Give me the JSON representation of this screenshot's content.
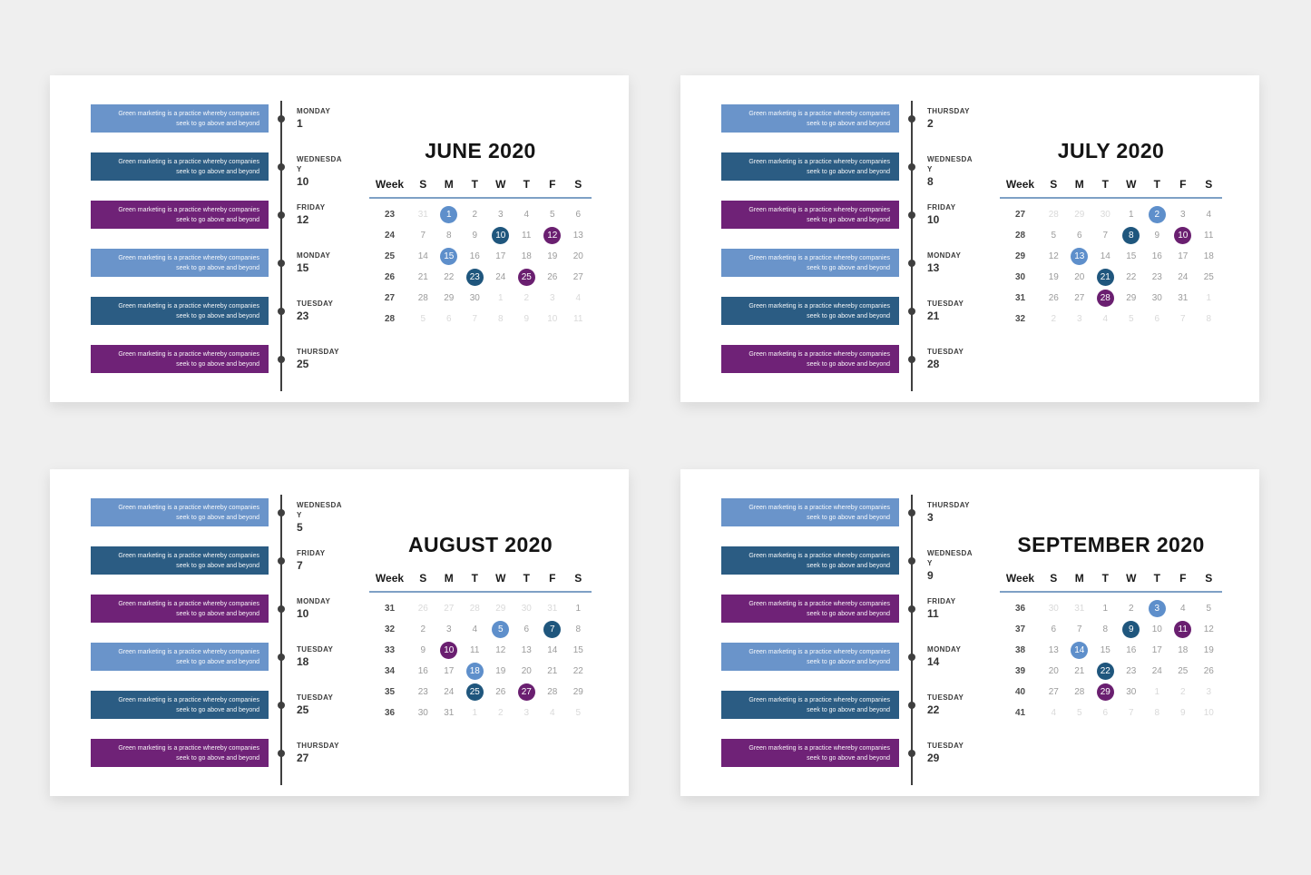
{
  "labels": {
    "week": "Week",
    "days": [
      "S",
      "M",
      "T",
      "W",
      "T",
      "F",
      "S"
    ]
  },
  "event_text": {
    "line1": "Green marketing is a practice whereby companies",
    "line2": "seek to go above and beyond"
  },
  "colors": {
    "light_blue": "#5E8FCB",
    "dark_blue": "#1F567D",
    "purple": "#6A1F70",
    "box_light_blue": "#6A94CA",
    "box_dark_blue": "#2B5C83",
    "box_purple": "#6F2277",
    "timeline": "#3F3F3F",
    "header_line": "#7EA0C5",
    "date": "#9B9B9B",
    "date_faded": "#D9D9D9",
    "week_number": "#4C4C4C",
    "title": "#141414",
    "page_bg": "#EFEFEF",
    "card_bg": "#FFFFFF"
  },
  "months": [
    {
      "title": "JUNE 2020",
      "events": [
        {
          "day": "MONDAY",
          "date": "1",
          "color": "light_blue"
        },
        {
          "day": "WEDNESDAY",
          "date": "10",
          "color": "dark_blue"
        },
        {
          "day": "FRIDAY",
          "date": "12",
          "color": "purple"
        },
        {
          "day": "MONDAY",
          "date": "15",
          "color": "light_blue"
        },
        {
          "day": "TUESDAY",
          "date": "23",
          "color": "dark_blue"
        },
        {
          "day": "THURSDAY",
          "date": "25",
          "color": "purple"
        }
      ],
      "weeks": [
        {
          "num": "23",
          "days": [
            {
              "d": "31",
              "s": "faded"
            },
            {
              "d": "1",
              "s": "light_blue"
            },
            {
              "d": "2"
            },
            {
              "d": "3"
            },
            {
              "d": "4"
            },
            {
              "d": "5"
            },
            {
              "d": "6"
            }
          ]
        },
        {
          "num": "24",
          "days": [
            {
              "d": "7"
            },
            {
              "d": "8"
            },
            {
              "d": "9"
            },
            {
              "d": "10",
              "s": "dark_blue"
            },
            {
              "d": "11"
            },
            {
              "d": "12",
              "s": "purple"
            },
            {
              "d": "13"
            }
          ]
        },
        {
          "num": "25",
          "days": [
            {
              "d": "14"
            },
            {
              "d": "15",
              "s": "light_blue"
            },
            {
              "d": "16"
            },
            {
              "d": "17"
            },
            {
              "d": "18"
            },
            {
              "d": "19"
            },
            {
              "d": "20"
            }
          ]
        },
        {
          "num": "26",
          "days": [
            {
              "d": "21"
            },
            {
              "d": "22"
            },
            {
              "d": "23",
              "s": "dark_blue"
            },
            {
              "d": "24"
            },
            {
              "d": "25",
              "s": "purple"
            },
            {
              "d": "26"
            },
            {
              "d": "27"
            }
          ]
        },
        {
          "num": "27",
          "days": [
            {
              "d": "28"
            },
            {
              "d": "29"
            },
            {
              "d": "30"
            },
            {
              "d": "1",
              "s": "faded"
            },
            {
              "d": "2",
              "s": "faded"
            },
            {
              "d": "3",
              "s": "faded"
            },
            {
              "d": "4",
              "s": "faded"
            }
          ]
        },
        {
          "num": "28",
          "days": [
            {
              "d": "5",
              "s": "faded"
            },
            {
              "d": "6",
              "s": "faded"
            },
            {
              "d": "7",
              "s": "faded"
            },
            {
              "d": "8",
              "s": "faded"
            },
            {
              "d": "9",
              "s": "faded"
            },
            {
              "d": "10",
              "s": "faded"
            },
            {
              "d": "11",
              "s": "faded"
            }
          ]
        }
      ]
    },
    {
      "title": "JULY 2020",
      "events": [
        {
          "day": "THURSDAY",
          "date": "2",
          "color": "light_blue"
        },
        {
          "day": "WEDNESDAY",
          "date": "8",
          "color": "dark_blue"
        },
        {
          "day": "FRIDAY",
          "date": "10",
          "color": "purple"
        },
        {
          "day": "MONDAY",
          "date": "13",
          "color": "light_blue"
        },
        {
          "day": "TUESDAY",
          "date": "21",
          "color": "dark_blue"
        },
        {
          "day": "TUESDAY",
          "date": "28",
          "color": "purple"
        }
      ],
      "weeks": [
        {
          "num": "27",
          "days": [
            {
              "d": "28",
              "s": "faded"
            },
            {
              "d": "29",
              "s": "faded"
            },
            {
              "d": "30",
              "s": "faded"
            },
            {
              "d": "1"
            },
            {
              "d": "2",
              "s": "light_blue"
            },
            {
              "d": "3"
            },
            {
              "d": "4"
            }
          ]
        },
        {
          "num": "28",
          "days": [
            {
              "d": "5"
            },
            {
              "d": "6"
            },
            {
              "d": "7"
            },
            {
              "d": "8",
              "s": "dark_blue"
            },
            {
              "d": "9"
            },
            {
              "d": "10",
              "s": "purple"
            },
            {
              "d": "11"
            }
          ]
        },
        {
          "num": "29",
          "days": [
            {
              "d": "12"
            },
            {
              "d": "13",
              "s": "light_blue"
            },
            {
              "d": "14"
            },
            {
              "d": "15"
            },
            {
              "d": "16"
            },
            {
              "d": "17"
            },
            {
              "d": "18"
            }
          ]
        },
        {
          "num": "30",
          "days": [
            {
              "d": "19"
            },
            {
              "d": "20"
            },
            {
              "d": "21",
              "s": "dark_blue"
            },
            {
              "d": "22"
            },
            {
              "d": "23"
            },
            {
              "d": "24"
            },
            {
              "d": "25"
            }
          ]
        },
        {
          "num": "31",
          "days": [
            {
              "d": "26"
            },
            {
              "d": "27"
            },
            {
              "d": "28",
              "s": "purple"
            },
            {
              "d": "29"
            },
            {
              "d": "30"
            },
            {
              "d": "31"
            },
            {
              "d": "1",
              "s": "faded"
            }
          ]
        },
        {
          "num": "32",
          "days": [
            {
              "d": "2",
              "s": "faded"
            },
            {
              "d": "3",
              "s": "faded"
            },
            {
              "d": "4",
              "s": "faded"
            },
            {
              "d": "5",
              "s": "faded"
            },
            {
              "d": "6",
              "s": "faded"
            },
            {
              "d": "7",
              "s": "faded"
            },
            {
              "d": "8",
              "s": "faded"
            }
          ]
        }
      ]
    },
    {
      "title": "AUGUST 2020",
      "events": [
        {
          "day": "WEDNESDAY",
          "date": "5",
          "color": "light_blue"
        },
        {
          "day": "FRIDAY",
          "date": "7",
          "color": "dark_blue"
        },
        {
          "day": "MONDAY",
          "date": "10",
          "color": "purple"
        },
        {
          "day": "TUESDAY",
          "date": "18",
          "color": "light_blue"
        },
        {
          "day": "TUESDAY",
          "date": "25",
          "color": "dark_blue"
        },
        {
          "day": "THURSDAY",
          "date": "27",
          "color": "purple"
        }
      ],
      "weeks": [
        {
          "num": "31",
          "days": [
            {
              "d": "26",
              "s": "faded"
            },
            {
              "d": "27",
              "s": "faded"
            },
            {
              "d": "28",
              "s": "faded"
            },
            {
              "d": "29",
              "s": "faded"
            },
            {
              "d": "30",
              "s": "faded"
            },
            {
              "d": "31",
              "s": "faded"
            },
            {
              "d": "1"
            }
          ]
        },
        {
          "num": "32",
          "days": [
            {
              "d": "2"
            },
            {
              "d": "3"
            },
            {
              "d": "4"
            },
            {
              "d": "5",
              "s": "light_blue"
            },
            {
              "d": "6"
            },
            {
              "d": "7",
              "s": "dark_blue"
            },
            {
              "d": "8"
            }
          ]
        },
        {
          "num": "33",
          "days": [
            {
              "d": "9"
            },
            {
              "d": "10",
              "s": "purple"
            },
            {
              "d": "11"
            },
            {
              "d": "12"
            },
            {
              "d": "13"
            },
            {
              "d": "14"
            },
            {
              "d": "15"
            }
          ]
        },
        {
          "num": "34",
          "days": [
            {
              "d": "16"
            },
            {
              "d": "17"
            },
            {
              "d": "18",
              "s": "light_blue"
            },
            {
              "d": "19"
            },
            {
              "d": "20"
            },
            {
              "d": "21"
            },
            {
              "d": "22"
            }
          ]
        },
        {
          "num": "35",
          "days": [
            {
              "d": "23"
            },
            {
              "d": "24"
            },
            {
              "d": "25",
              "s": "dark_blue"
            },
            {
              "d": "26"
            },
            {
              "d": "27",
              "s": "purple"
            },
            {
              "d": "28"
            },
            {
              "d": "29"
            }
          ]
        },
        {
          "num": "36",
          "days": [
            {
              "d": "30"
            },
            {
              "d": "31"
            },
            {
              "d": "1",
              "s": "faded"
            },
            {
              "d": "2",
              "s": "faded"
            },
            {
              "d": "3",
              "s": "faded"
            },
            {
              "d": "4",
              "s": "faded"
            },
            {
              "d": "5",
              "s": "faded"
            }
          ]
        }
      ]
    },
    {
      "title": "SEPTEMBER 2020",
      "events": [
        {
          "day": "THURSDAY",
          "date": "3",
          "color": "light_blue"
        },
        {
          "day": "WEDNESDAY",
          "date": "9",
          "color": "dark_blue"
        },
        {
          "day": "FRIDAY",
          "date": "11",
          "color": "purple"
        },
        {
          "day": "MONDAY",
          "date": "14",
          "color": "light_blue"
        },
        {
          "day": "TUESDAY",
          "date": "22",
          "color": "dark_blue"
        },
        {
          "day": "TUESDAY",
          "date": "29",
          "color": "purple"
        }
      ],
      "weeks": [
        {
          "num": "36",
          "days": [
            {
              "d": "30",
              "s": "faded"
            },
            {
              "d": "31",
              "s": "faded"
            },
            {
              "d": "1"
            },
            {
              "d": "2"
            },
            {
              "d": "3",
              "s": "light_blue"
            },
            {
              "d": "4"
            },
            {
              "d": "5"
            }
          ]
        },
        {
          "num": "37",
          "days": [
            {
              "d": "6"
            },
            {
              "d": "7"
            },
            {
              "d": "8"
            },
            {
              "d": "9",
              "s": "dark_blue"
            },
            {
              "d": "10"
            },
            {
              "d": "11",
              "s": "purple"
            },
            {
              "d": "12"
            }
          ]
        },
        {
          "num": "38",
          "days": [
            {
              "d": "13"
            },
            {
              "d": "14",
              "s": "light_blue"
            },
            {
              "d": "15"
            },
            {
              "d": "16"
            },
            {
              "d": "17"
            },
            {
              "d": "18"
            },
            {
              "d": "19"
            }
          ]
        },
        {
          "num": "39",
          "days": [
            {
              "d": "20"
            },
            {
              "d": "21"
            },
            {
              "d": "22",
              "s": "dark_blue"
            },
            {
              "d": "23"
            },
            {
              "d": "24"
            },
            {
              "d": "25"
            },
            {
              "d": "26"
            }
          ]
        },
        {
          "num": "40",
          "days": [
            {
              "d": "27"
            },
            {
              "d": "28"
            },
            {
              "d": "29",
              "s": "purple"
            },
            {
              "d": "30"
            },
            {
              "d": "1",
              "s": "faded"
            },
            {
              "d": "2",
              "s": "faded"
            },
            {
              "d": "3",
              "s": "faded"
            }
          ]
        },
        {
          "num": "41",
          "days": [
            {
              "d": "4",
              "s": "faded"
            },
            {
              "d": "5",
              "s": "faded"
            },
            {
              "d": "6",
              "s": "faded"
            },
            {
              "d": "7",
              "s": "faded"
            },
            {
              "d": "8",
              "s": "faded"
            },
            {
              "d": "9",
              "s": "faded"
            },
            {
              "d": "10",
              "s": "faded"
            }
          ]
        }
      ]
    }
  ]
}
